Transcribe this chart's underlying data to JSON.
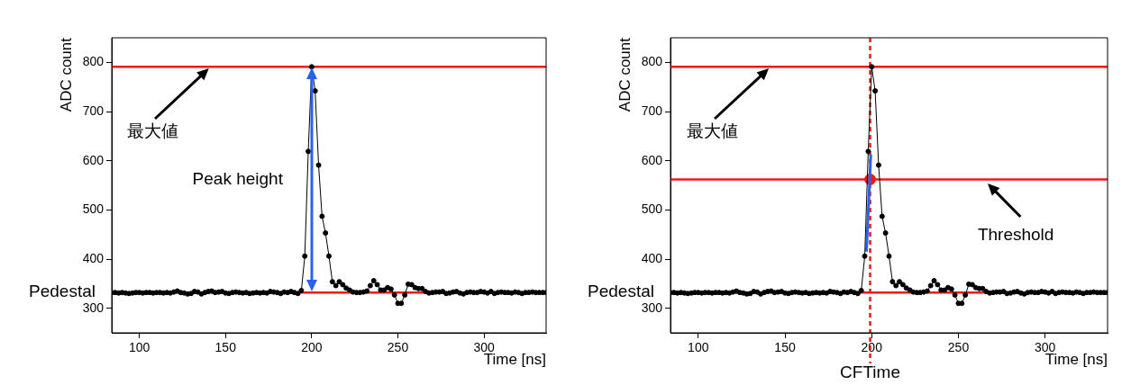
{
  "chart_data": [
    {
      "type": "line",
      "xlabel": "Time [ns]",
      "ylabel": "ADC count",
      "xlim": [
        84,
        336
      ],
      "ylim": [
        250,
        850
      ],
      "xticks": [
        100,
        150,
        200,
        250,
        300
      ],
      "yticks": [
        300,
        400,
        500,
        600,
        700,
        800
      ],
      "marker": "circle",
      "x": [
        84,
        86,
        88,
        90,
        92,
        94,
        96,
        98,
        100,
        102,
        104,
        106,
        108,
        110,
        112,
        114,
        116,
        118,
        120,
        122,
        124,
        126,
        128,
        130,
        132,
        134,
        136,
        138,
        140,
        142,
        144,
        146,
        148,
        150,
        152,
        154,
        156,
        158,
        160,
        162,
        164,
        166,
        168,
        170,
        172,
        174,
        176,
        178,
        180,
        182,
        184,
        186,
        188,
        190,
        192,
        194,
        196,
        198,
        200,
        202,
        204,
        206,
        208,
        210,
        212,
        214,
        216,
        218,
        220,
        222,
        224,
        226,
        228,
        230,
        232,
        234,
        236,
        238,
        240,
        242,
        244,
        246,
        248,
        250,
        252,
        254,
        256,
        258,
        260,
        262,
        264,
        266,
        268,
        270,
        272,
        274,
        276,
        278,
        280,
        282,
        284,
        286,
        288,
        290,
        292,
        294,
        296,
        298,
        300,
        302,
        304,
        306,
        308,
        310,
        312,
        314,
        316,
        318,
        320,
        322,
        324,
        326,
        328,
        330,
        332,
        334,
        336
      ],
      "series": [
        {
          "color": "#000000",
          "values": [
            332,
            332,
            331,
            332,
            331,
            330,
            331,
            332,
            332,
            331,
            332,
            332,
            331,
            332,
            332,
            331,
            332,
            331,
            333,
            335,
            332,
            331,
            329,
            330,
            334,
            333,
            329,
            332,
            334,
            335,
            332,
            333,
            334,
            331,
            330,
            332,
            333,
            332,
            331,
            332,
            330,
            331,
            332,
            331,
            332,
            331,
            334,
            333,
            332,
            330,
            333,
            332,
            334,
            332,
            330,
            336,
            406,
            619,
            791,
            742,
            591,
            487,
            453,
            406,
            354,
            346,
            354,
            348,
            341,
            337,
            333,
            332,
            332,
            333,
            335,
            346,
            356,
            348,
            337,
            337,
            342,
            339,
            327,
            310,
            310,
            327,
            349,
            348,
            342,
            340,
            340,
            334,
            331,
            332,
            333,
            333,
            334,
            330,
            331,
            333,
            334,
            331,
            329,
            332,
            333,
            332,
            332,
            334,
            333,
            331,
            334,
            330,
            332,
            333,
            332,
            332,
            331,
            333,
            332,
            330,
            332,
            332,
            333,
            332,
            332,
            332,
            332
          ]
        }
      ],
      "ref_lines": [
        {
          "axis": "y",
          "value": 791,
          "label": "最大値",
          "color": "#ee1c10"
        },
        {
          "axis": "y",
          "value": 332,
          "label": "Pedestal",
          "color": "#ee1c10"
        }
      ],
      "annotations": [
        "Peak height"
      ]
    },
    {
      "type": "line",
      "xlabel": "Time [ns]",
      "ylabel": "ADC count",
      "xlim": [
        84,
        336
      ],
      "ylim": [
        250,
        850
      ],
      "xticks": [
        100,
        150,
        200,
        250,
        300
      ],
      "yticks": [
        300,
        400,
        500,
        600,
        700,
        800
      ],
      "marker": "circle",
      "x": [
        84,
        86,
        88,
        90,
        92,
        94,
        96,
        98,
        100,
        102,
        104,
        106,
        108,
        110,
        112,
        114,
        116,
        118,
        120,
        122,
        124,
        126,
        128,
        130,
        132,
        134,
        136,
        138,
        140,
        142,
        144,
        146,
        148,
        150,
        152,
        154,
        156,
        158,
        160,
        162,
        164,
        166,
        168,
        170,
        172,
        174,
        176,
        178,
        180,
        182,
        184,
        186,
        188,
        190,
        192,
        194,
        196,
        198,
        200,
        202,
        204,
        206,
        208,
        210,
        212,
        214,
        216,
        218,
        220,
        222,
        224,
        226,
        228,
        230,
        232,
        234,
        236,
        238,
        240,
        242,
        244,
        246,
        248,
        250,
        252,
        254,
        256,
        258,
        260,
        262,
        264,
        266,
        268,
        270,
        272,
        274,
        276,
        278,
        280,
        282,
        284,
        286,
        288,
        290,
        292,
        294,
        296,
        298,
        300,
        302,
        304,
        306,
        308,
        310,
        312,
        314,
        316,
        318,
        320,
        322,
        324,
        326,
        328,
        330,
        332,
        334,
        336
      ],
      "series": [
        {
          "color": "#000000",
          "values": [
            332,
            332,
            331,
            332,
            331,
            330,
            331,
            332,
            332,
            331,
            332,
            332,
            331,
            332,
            332,
            331,
            332,
            331,
            333,
            335,
            332,
            331,
            329,
            330,
            334,
            333,
            329,
            332,
            334,
            335,
            332,
            333,
            334,
            331,
            330,
            332,
            333,
            332,
            331,
            332,
            330,
            331,
            332,
            331,
            332,
            331,
            334,
            333,
            332,
            330,
            333,
            332,
            334,
            332,
            330,
            336,
            406,
            619,
            791,
            742,
            591,
            487,
            453,
            406,
            354,
            346,
            354,
            348,
            341,
            337,
            333,
            332,
            332,
            333,
            335,
            346,
            356,
            348,
            337,
            337,
            342,
            339,
            327,
            310,
            310,
            327,
            349,
            348,
            342,
            340,
            340,
            334,
            331,
            332,
            333,
            333,
            334,
            330,
            331,
            333,
            334,
            331,
            329,
            332,
            333,
            332,
            332,
            334,
            333,
            331,
            334,
            330,
            332,
            333,
            332,
            332,
            331,
            333,
            332,
            330,
            332,
            332,
            333,
            332,
            332,
            332,
            332
          ]
        },
        {
          "type": "line",
          "marker": "none",
          "color": "#2a62f0",
          "x": [
            197,
            199.5
          ],
          "values": [
            415,
            613
          ]
        },
        {
          "type": "scatter",
          "color": "#ee1c10",
          "x": [
            199.1
          ],
          "values": [
            562
          ]
        }
      ],
      "ref_lines": [
        {
          "axis": "y",
          "value": 791,
          "label": "最大値",
          "color": "#ee1c10"
        },
        {
          "axis": "y",
          "value": 562,
          "label": "Threshold",
          "color": "#ee1c10"
        },
        {
          "axis": "y",
          "value": 332,
          "label": "Pedestal",
          "color": "#ee1c10"
        },
        {
          "axis": "x",
          "value": 199.1,
          "label": "CFTime",
          "color": "#ee1c10",
          "line_style": "dashed"
        }
      ]
    }
  ]
}
